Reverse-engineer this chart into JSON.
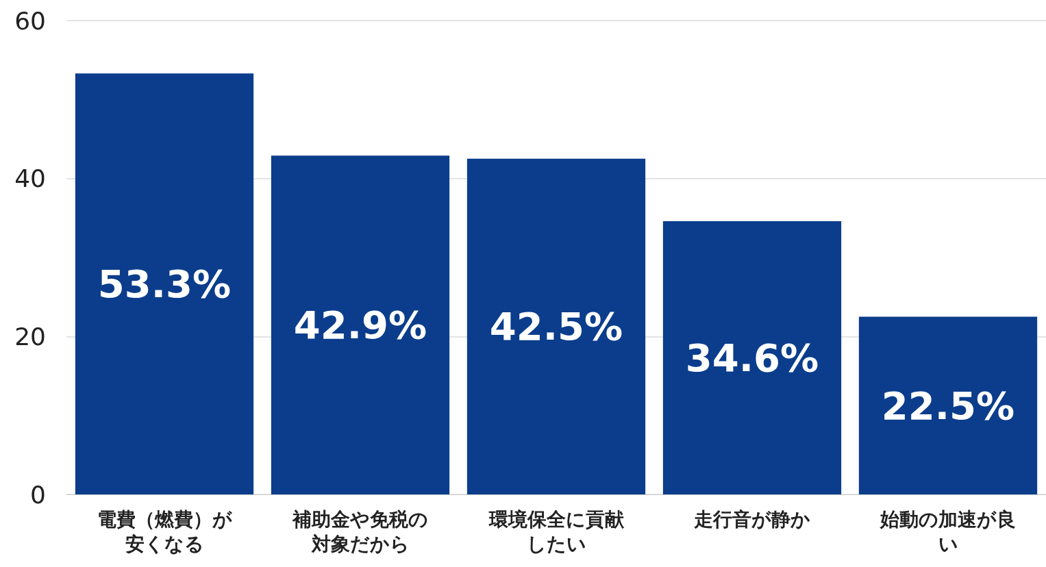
{
  "chart_data": {
    "type": "bar",
    "categories": [
      "電費（燃費）が安くなる",
      "補助金や免税の対象だから",
      "環境保全に貢献したい",
      "走行音が静か",
      "始動の加速が良い"
    ],
    "values": [
      53.3,
      42.9,
      42.5,
      34.6,
      22.5
    ],
    "value_labels": [
      "53.3%",
      "42.9%",
      "42.5%",
      "34.6%",
      "22.5%"
    ],
    "color": "#0b3d8c",
    "ylim": [
      0,
      60
    ],
    "yticks": [
      0,
      20,
      40,
      60
    ],
    "grid": "y"
  }
}
